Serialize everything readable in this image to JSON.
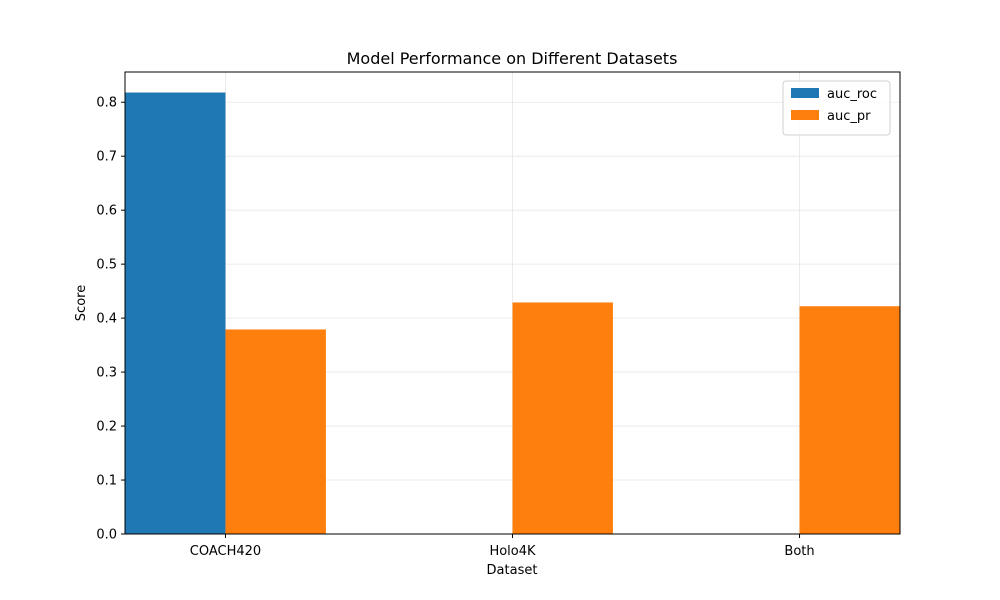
{
  "chart_data": {
    "type": "bar",
    "title": "Model Performance on Different Datasets",
    "xlabel": "Dataset",
    "ylabel": "Score",
    "categories": [
      "COACH420",
      "Holo4K",
      "Both"
    ],
    "series": [
      {
        "name": "auc_roc",
        "color": "#1f77b4",
        "values": [
          0.818,
          null,
          null
        ]
      },
      {
        "name": "auc_pr",
        "color": "#ff7f0e",
        "values": [
          0.379,
          0.429,
          0.422
        ]
      }
    ],
    "ylim": [
      0,
      0.856
    ],
    "yticks": [
      "0.0",
      "0.1",
      "0.2",
      "0.3",
      "0.4",
      "0.5",
      "0.6",
      "0.7",
      "0.8"
    ],
    "grid": true,
    "legend": "top-right"
  }
}
